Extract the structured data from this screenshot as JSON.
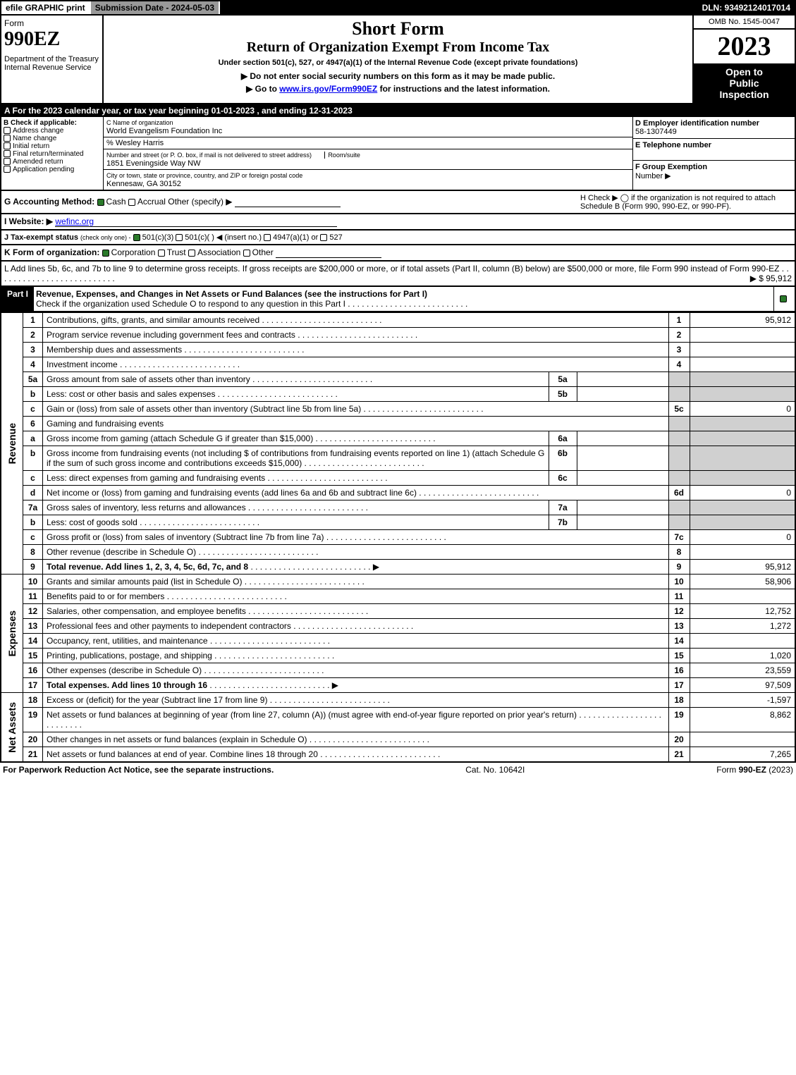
{
  "topbar": {
    "efile": "efile GRAPHIC print",
    "sub": "Submission Date - 2024-05-03",
    "dln": "DLN: 93492124017014"
  },
  "header": {
    "form_word": "Form",
    "form_code": "990EZ",
    "dept": "Department of the Treasury",
    "irs": "Internal Revenue Service",
    "short": "Short Form",
    "return": "Return of Organization Exempt From Income Tax",
    "under": "Under section 501(c), 527, or 4947(a)(1) of the Internal Revenue Code (except private foundations)",
    "advisory": "▶ Do not enter social security numbers on this form as it may be made public.",
    "goto_pre": "▶ Go to ",
    "goto_link": "www.irs.gov/Form990EZ",
    "goto_post": " for instructions and the latest information.",
    "omb": "OMB No. 1545-0047",
    "year": "2023",
    "open1": "Open to",
    "open2": "Public",
    "open3": "Inspection"
  },
  "A": "A  For the 2023 calendar year, or tax year beginning 01-01-2023 , and ending 12-31-2023",
  "B": {
    "title": "B  Check if applicable:",
    "opts": [
      "Address change",
      "Name change",
      "Initial return",
      "Final return/terminated",
      "Amended return",
      "Application pending"
    ]
  },
  "C": {
    "nl": "C Name of organization",
    "name": "World Evangelism Foundation Inc",
    "care": "% Wesley Harris",
    "addr_lbl": "Number and street (or P. O. box, if mail is not delivered to street address)",
    "room": "Room/suite",
    "addr": "1851 Eveningside Way NW",
    "city_lbl": "City or town, state or province, country, and ZIP or foreign postal code",
    "city": "Kennesaw, GA  30152"
  },
  "D": {
    "lbl": "D Employer identification number",
    "ein": "58-1307449",
    "E": "E Telephone number",
    "tel": "",
    "F": "F Group Exemption",
    "F2": "Number   ▶"
  },
  "G": {
    "pre": "G Accounting Method:",
    "cash": "Cash",
    "accrual": "Accrual",
    "other": "Other (specify) ▶"
  },
  "H": "H  Check ▶  ◯  if the organization is not required to attach Schedule B (Form 990, 990-EZ, or 990-PF).",
  "I": {
    "pre": "I Website: ▶",
    "url": "wefinc.org"
  },
  "J": {
    "pre": "J Tax-exempt status",
    "sub": "(check only one) -",
    "a": "501(c)(3)",
    "b": "501(c)(  ) ◀ (insert no.)",
    "c": "4947(a)(1) or",
    "d": "527"
  },
  "K": {
    "pre": "K Form of organization:",
    "a": "Corporation",
    "b": "Trust",
    "c": "Association",
    "d": "Other"
  },
  "L": "L Add lines 5b, 6c, and 7b to line 9 to determine gross receipts. If gross receipts are $200,000 or more, or if total assets (Part II, column (B) below) are $500,000 or more, file Form 990 instead of Form 990-EZ",
  "L_amt": "▶ $ 95,912",
  "partI": {
    "label": "Part I",
    "title": "Revenue, Expenses, and Changes in Net Assets or Fund Balances (see the instructions for Part I)",
    "sub": "Check if the organization used Schedule O to respond to any question in this Part I"
  },
  "rows": [
    {
      "n": "1",
      "d": "Contributions, gifts, grants, and similar amounts received",
      "r": "1",
      "v": "95,912"
    },
    {
      "n": "2",
      "d": "Program service revenue including government fees and contracts",
      "r": "2",
      "v": ""
    },
    {
      "n": "3",
      "d": "Membership dues and assessments",
      "r": "3",
      "v": ""
    },
    {
      "n": "4",
      "d": "Investment income",
      "r": "4",
      "v": ""
    },
    {
      "n": "5a",
      "d": "Gross amount from sale of assets other than inventory",
      "inset": "5a",
      "iv": "",
      "shade": true
    },
    {
      "n": "b",
      "d": "Less: cost or other basis and sales expenses",
      "inset": "5b",
      "iv": "",
      "shade": true
    },
    {
      "n": "c",
      "d": "Gain or (loss) from sale of assets other than inventory (Subtract line 5b from line 5a)",
      "r": "5c",
      "v": "0"
    },
    {
      "n": "6",
      "d": "Gaming and fundraising events",
      "noref": true,
      "shade": true
    },
    {
      "n": "a",
      "d": "Gross income from gaming (attach Schedule G if greater than $15,000)",
      "inset": "6a",
      "iv": "",
      "shade": true
    },
    {
      "n": "b",
      "d": "Gross income from fundraising events (not including $                          of contributions from fundraising events reported on line 1) (attach Schedule G if the sum of such gross income and contributions exceeds $15,000)",
      "inset": "6b",
      "iv": "",
      "shade": true
    },
    {
      "n": "c",
      "d": "Less: direct expenses from gaming and fundraising events",
      "inset": "6c",
      "iv": "",
      "shade": true
    },
    {
      "n": "d",
      "d": "Net income or (loss) from gaming and fundraising events (add lines 6a and 6b and subtract line 6c)",
      "r": "6d",
      "v": "0"
    },
    {
      "n": "7a",
      "d": "Gross sales of inventory, less returns and allowances",
      "inset": "7a",
      "iv": "",
      "shade": true
    },
    {
      "n": "b",
      "d": "Less: cost of goods sold",
      "inset": "7b",
      "iv": "",
      "shade": true
    },
    {
      "n": "c",
      "d": "Gross profit or (loss) from sales of inventory (Subtract line 7b from line 7a)",
      "r": "7c",
      "v": "0"
    },
    {
      "n": "8",
      "d": "Other revenue (describe in Schedule O)",
      "r": "8",
      "v": ""
    },
    {
      "n": "9",
      "d": "Total revenue. Add lines 1, 2, 3, 4, 5c, 6d, 7c, and 8",
      "bold": true,
      "arr": true,
      "r": "9",
      "v": "95,912"
    }
  ],
  "exp": [
    {
      "n": "10",
      "d": "Grants and similar amounts paid (list in Schedule O)",
      "r": "10",
      "v": "58,906"
    },
    {
      "n": "11",
      "d": "Benefits paid to or for members",
      "r": "11",
      "v": ""
    },
    {
      "n": "12",
      "d": "Salaries, other compensation, and employee benefits",
      "r": "12",
      "v": "12,752"
    },
    {
      "n": "13",
      "d": "Professional fees and other payments to independent contractors",
      "r": "13",
      "v": "1,272"
    },
    {
      "n": "14",
      "d": "Occupancy, rent, utilities, and maintenance",
      "r": "14",
      "v": ""
    },
    {
      "n": "15",
      "d": "Printing, publications, postage, and shipping",
      "r": "15",
      "v": "1,020"
    },
    {
      "n": "16",
      "d": "Other expenses (describe in Schedule O)",
      "r": "16",
      "v": "23,559"
    },
    {
      "n": "17",
      "d": "Total expenses. Add lines 10 through 16",
      "bold": true,
      "arr": true,
      "r": "17",
      "v": "97,509"
    }
  ],
  "na": [
    {
      "n": "18",
      "d": "Excess or (deficit) for the year (Subtract line 17 from line 9)",
      "r": "18",
      "v": "-1,597"
    },
    {
      "n": "19",
      "d": "Net assets or fund balances at beginning of year (from line 27, column (A)) (must agree with end-of-year figure reported on prior year's return)",
      "r": "19",
      "v": "8,862"
    },
    {
      "n": "20",
      "d": "Other changes in net assets or fund balances (explain in Schedule O)",
      "r": "20",
      "v": ""
    },
    {
      "n": "21",
      "d": "Net assets or fund balances at end of year. Combine lines 18 through 20",
      "r": "21",
      "v": "7,265"
    }
  ],
  "sections": {
    "rev": "Revenue",
    "exp": "Expenses",
    "na": "Net Assets"
  },
  "footer": {
    "left": "For Paperwork Reduction Act Notice, see the separate instructions.",
    "mid": "Cat. No. 10642I",
    "right_pre": "Form ",
    "right_bold": "990-EZ",
    "right_post": " (2023)"
  }
}
